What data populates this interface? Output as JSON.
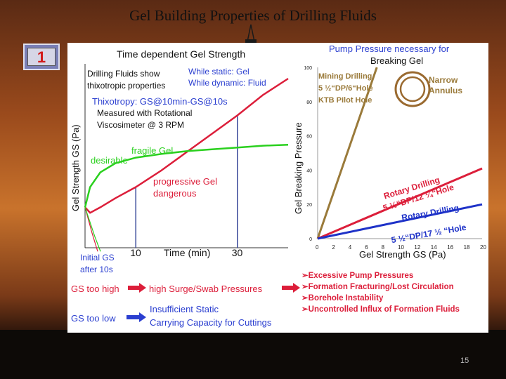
{
  "slide": {
    "title": "Gel Building Properties of Drilling Fluids",
    "badge": "1",
    "page_number": "15"
  },
  "left_text": {
    "show1": "Drilling Fluids show",
    "show2": "thixotropic properties",
    "static": "While static: Gel",
    "dynamic": "While dynamic: Fluid",
    "thixo": "Thixotropy: GS@10min-GS@10s",
    "meas1": "Measured with Rotational",
    "meas2": "Viscosimeter @ 3 RPM",
    "fragile": "fragile Gel",
    "desirable": "desirable",
    "prog1": "progressive Gel",
    "prog2": "dangerous",
    "initial1": "Initial GS",
    "initial2": "after 10s"
  },
  "right_text": {
    "title1": "Pump Pressure necessary for",
    "title2": "Breaking Gel",
    "mining1": "Mining Drilling",
    "mining2": "5 ½“DP/6“Hole",
    "mining3": "KTB Pilot Hole",
    "narrow1": "Narrow",
    "narrow2": "Annulus",
    "rot1a": "Rotary Drilling",
    "rot1b": "5 ½“DP/12 ¼“Hole",
    "rot2a": "Rotary Drilling",
    "rot2b": "5 ½“DP/17 ½ “Hole"
  },
  "bottom": {
    "gs_high": "GS too high",
    "surge": "high Surge/Swab Pressures",
    "gs_low": "GS too low",
    "insuff1": "Insufficient Static",
    "insuff2": "Carrying Capacity for Cuttings",
    "bullets": [
      "➢Excessive Pump Pressures",
      "➢Formation Fracturing/Lost Circulation",
      "➢Borehole Instability",
      "➢Uncontrolled Influx of Formation Fluids"
    ]
  },
  "chart_data": [
    {
      "type": "line",
      "title": "Time dependent Gel Strength",
      "xlabel": "Time (min)",
      "ylabel": "Gel Strength GS (Pa)",
      "xticks": [
        "10",
        "30"
      ],
      "xlim": [
        0,
        40
      ],
      "series": [
        {
          "name": "progressive Gel",
          "color": "#dc1e3a",
          "x": [
            0,
            1,
            3,
            6,
            10,
            15,
            20,
            25,
            30,
            35,
            40
          ],
          "y": [
            22,
            19,
            22,
            27,
            33,
            42,
            52,
            62,
            72,
            83,
            92
          ]
        },
        {
          "name": "fragile Gel",
          "color": "#2ad01e",
          "x": [
            0,
            1,
            3,
            6,
            10,
            15,
            20,
            25,
            30,
            35,
            40
          ],
          "y": [
            22,
            33,
            41,
            46,
            49,
            51,
            52.5,
            53.5,
            54.5,
            55.5,
            56
          ]
        }
      ]
    },
    {
      "type": "line",
      "title": "Pump Pressure necessary for Breaking Gel",
      "xlabel": "Gel Strength GS (Pa)",
      "ylabel": "Gel Breaking Pressure",
      "xlim": [
        0,
        20
      ],
      "ylim": [
        0,
        100
      ],
      "xticks": [
        "0",
        "2",
        "4",
        "6",
        "8",
        "10",
        "12",
        "14",
        "16",
        "18",
        "20"
      ],
      "yticks": [
        "0",
        "20",
        "40",
        "60",
        "80",
        "100"
      ],
      "series": [
        {
          "name": "Mining Drilling 5 ½“DP/6“Hole KTB Pilot Hole",
          "color": "#9a7a3a",
          "x": [
            0,
            7.2
          ],
          "y": [
            0,
            100
          ]
        },
        {
          "name": "Rotary Drilling 5 ½“DP/12 ¼“Hole",
          "color": "#dc1e3a",
          "x": [
            0,
            20
          ],
          "y": [
            0,
            41
          ]
        },
        {
          "name": "Rotary Drilling 5 ½“DP/17 ½ “Hole",
          "color": "#1e32c8",
          "x": [
            0,
            20
          ],
          "y": [
            0,
            20
          ]
        }
      ]
    }
  ]
}
